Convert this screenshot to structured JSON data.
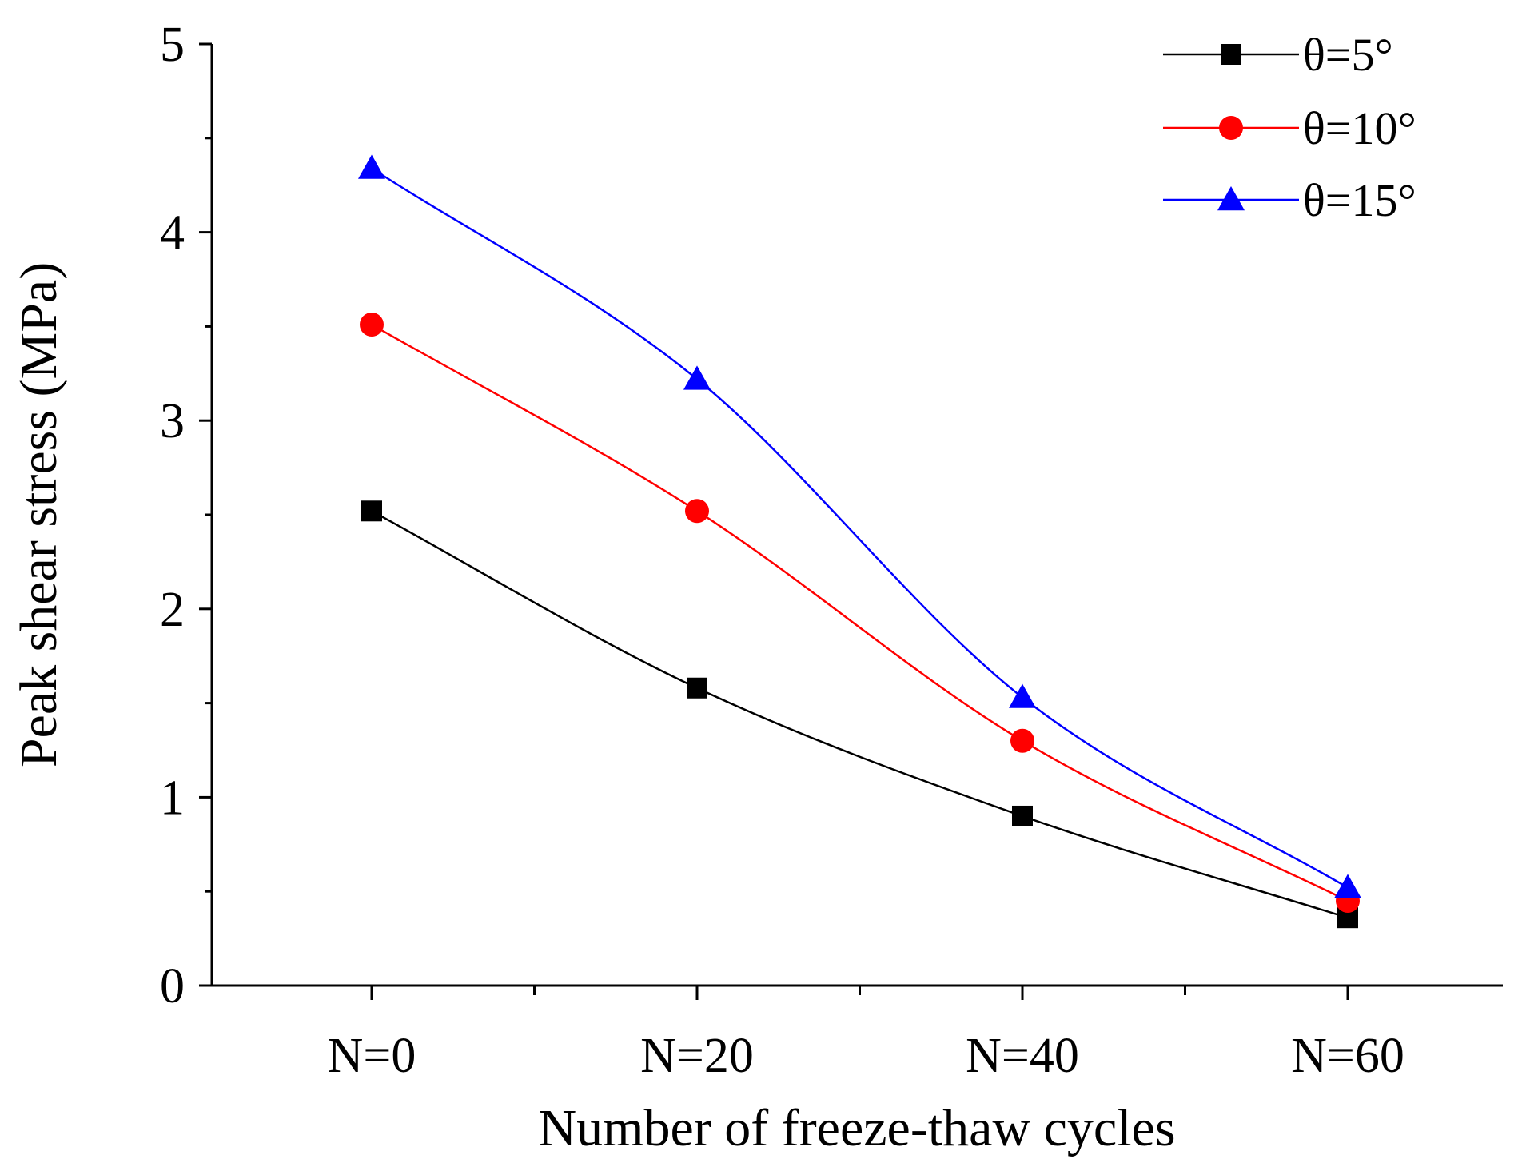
{
  "chart_data": {
    "type": "line",
    "title": "",
    "xlabel": "Number of freeze-thaw cycles",
    "ylabel": "Peak shear stress (MPa)",
    "categories": [
      "N=0",
      "N=20",
      "N=40",
      "N=60"
    ],
    "ylim": [
      0,
      5
    ],
    "yticks": [
      "0",
      "1",
      "2",
      "3",
      "4",
      "5"
    ],
    "grid": false,
    "legend_position": "top-right",
    "series": [
      {
        "name": "θ=5°",
        "color": "#000000",
        "marker": "square",
        "values": [
          2.52,
          1.58,
          0.9,
          0.36
        ]
      },
      {
        "name": "θ=10°",
        "color": "#ff0000",
        "marker": "circle",
        "values": [
          3.51,
          2.52,
          1.3,
          0.45
        ]
      },
      {
        "name": "θ=15°",
        "color": "#0000ff",
        "marker": "triangle",
        "values": [
          4.34,
          3.22,
          1.53,
          0.52
        ]
      }
    ]
  }
}
